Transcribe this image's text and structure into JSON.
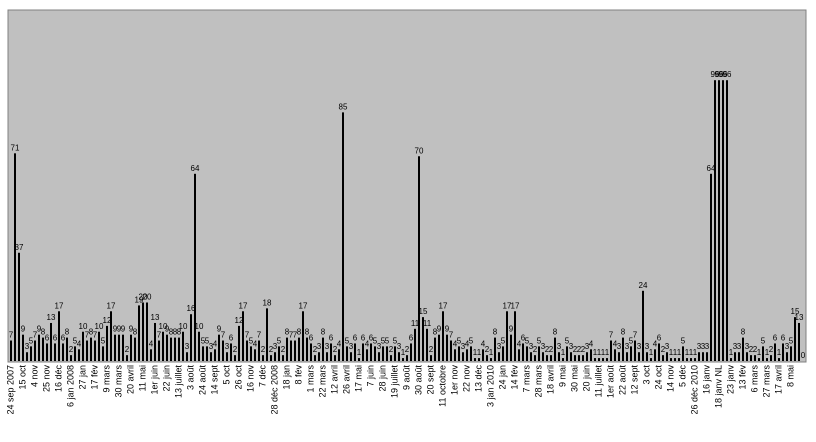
{
  "chart_data": {
    "type": "bar",
    "color": "#000000",
    "background": "#c0c0c0",
    "ylim": [
      0,
      120
    ],
    "categories": [
      "24 sep 2007",
      null,
      null,
      "15 oct",
      null,
      null,
      "4 nov",
      null,
      null,
      "25 nov",
      null,
      null,
      "16 déc",
      null,
      null,
      "6 jan 2008",
      null,
      null,
      "27 jan",
      null,
      null,
      "17 fév",
      null,
      null,
      "9 mars",
      null,
      null,
      "30 mars",
      null,
      null,
      "20 avril",
      null,
      null,
      "11 mai",
      null,
      null,
      "1er juin",
      null,
      null,
      "22 juin",
      null,
      null,
      "13 juillet",
      null,
      null,
      "3 août",
      null,
      null,
      "24 août",
      null,
      null,
      "14 sept",
      null,
      null,
      "5 oct",
      null,
      null,
      "26 oct",
      null,
      null,
      "16 nov",
      null,
      null,
      "7 déc",
      null,
      null,
      "28 déc 2008",
      null,
      null,
      "18 jan",
      null,
      null,
      "8 fév",
      null,
      null,
      "1 mars",
      null,
      null,
      "22 mars",
      null,
      null,
      "12 avril",
      null,
      null,
      "26 avril",
      null,
      null,
      "17 mai",
      null,
      null,
      "7 juin",
      null,
      null,
      "28 juin",
      null,
      null,
      "19 juillet",
      null,
      null,
      "9 août",
      null,
      null,
      "30 août",
      null,
      null,
      "20 sept",
      null,
      null,
      "11 octobre",
      null,
      null,
      "1er nov",
      null,
      null,
      "22 nov",
      null,
      null,
      "13 déc",
      null,
      null,
      "3 jan 2010",
      null,
      null,
      "24 jan",
      null,
      null,
      "14 fév",
      null,
      null,
      "7 mars",
      null,
      null,
      "28 mars",
      null,
      null,
      "18 avril",
      null,
      null,
      "9 mai",
      null,
      null,
      "30 mai",
      null,
      null,
      "20 juin",
      null,
      null,
      "11 juillet",
      null,
      null,
      "1er août",
      null,
      null,
      "22 août",
      null,
      null,
      "12 sept",
      null,
      null,
      "3 oct",
      null,
      null,
      "24 oct",
      null,
      null,
      "14 nov",
      null,
      null,
      "5 déc",
      null,
      null,
      "26 déc 2010",
      null,
      null,
      "16 janv",
      null,
      null,
      "18 janv NL",
      null,
      null,
      "23 janv",
      null,
      null,
      "13 fév",
      null,
      null,
      "6 mars",
      null,
      null,
      "27 mars",
      null,
      null,
      "17 avril",
      null,
      null,
      "8 mai",
      null,
      null,
      null
    ],
    "values": [
      7,
      71,
      37,
      9,
      3,
      5,
      7,
      9,
      8,
      6,
      13,
      6,
      17,
      6,
      8,
      2,
      5,
      4,
      10,
      7,
      8,
      7,
      10,
      5,
      12,
      17,
      9,
      9,
      9,
      2,
      9,
      8,
      19,
      20,
      20,
      4,
      13,
      7,
      10,
      9,
      8,
      8,
      8,
      10,
      3,
      16,
      64,
      10,
      5,
      5,
      3,
      4,
      9,
      7,
      3,
      6,
      2,
      12,
      17,
      7,
      5,
      4,
      7,
      2,
      18,
      2,
      3,
      5,
      2,
      8,
      7,
      7,
      8,
      17,
      8,
      6,
      2,
      3,
      8,
      3,
      6,
      2,
      4,
      85,
      5,
      3,
      6,
      1,
      6,
      4,
      6,
      5,
      3,
      5,
      5,
      2,
      5,
      3,
      1,
      2,
      6,
      11,
      70,
      15,
      11,
      2,
      8,
      9,
      17,
      9,
      7,
      4,
      5,
      3,
      4,
      5,
      1,
      1,
      4,
      2,
      1,
      8,
      3,
      5,
      17,
      9,
      17,
      4,
      6,
      5,
      3,
      2,
      5,
      3,
      2,
      2,
      8,
      3,
      1,
      5,
      3,
      2,
      2,
      2,
      3,
      4,
      1,
      1,
      1,
      1,
      7,
      4,
      3,
      8,
      3,
      5,
      7,
      3,
      24,
      3,
      1,
      4,
      6,
      2,
      3,
      1,
      1,
      1,
      5,
      1,
      1,
      1,
      3,
      3,
      3,
      64,
      96,
      96,
      96,
      96,
      1,
      3,
      3,
      8,
      3,
      2,
      2,
      1,
      5,
      1,
      2,
      6,
      1,
      6,
      3,
      5,
      15,
      13,
      0
    ]
  }
}
